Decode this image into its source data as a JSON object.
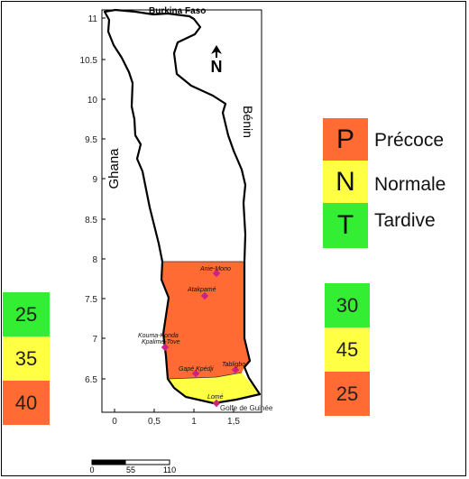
{
  "map": {
    "neighbors": {
      "north": "Burkina Faso",
      "west": "Ghana",
      "east": "Bénin",
      "south": "Golfe de Guinée"
    },
    "north_label": "N",
    "y_ticks": [
      "11",
      "10.5",
      "10",
      "9.5",
      "9",
      "8.5",
      "8",
      "7.5",
      "7",
      "6.5"
    ],
    "x_ticks": [
      "0",
      "0,5",
      "1",
      "1,5"
    ],
    "cities": [
      "Anie-Mono",
      "Atakpamé",
      "Kouma-Konda",
      "Kpalime-Tove",
      "Gapé Kpédji",
      "Tabligbo",
      "Lomé"
    ],
    "scale_bar": [
      "0",
      "55",
      "110"
    ]
  },
  "legend": [
    {
      "letter": "P",
      "label": "Précoce",
      "color": "#ff6b33"
    },
    {
      "letter": "N",
      "label": "Normale",
      "color": "#ffff44"
    },
    {
      "letter": "T",
      "label": "Tardive",
      "color": "#33ee33"
    }
  ],
  "left_column": [
    {
      "value": "25",
      "color": "#33ee33"
    },
    {
      "value": "35",
      "color": "#ffff44"
    },
    {
      "value": "40",
      "color": "#ff6b33"
    }
  ],
  "right_column": [
    {
      "value": "30",
      "color": "#33ee33"
    },
    {
      "value": "45",
      "color": "#ffff44"
    },
    {
      "value": "25",
      "color": "#ff6b33"
    }
  ],
  "colors": {
    "plateaux_zone": "#ff6b33",
    "maritime_zone": "#ffff44",
    "city_marker": "#cc2288"
  }
}
